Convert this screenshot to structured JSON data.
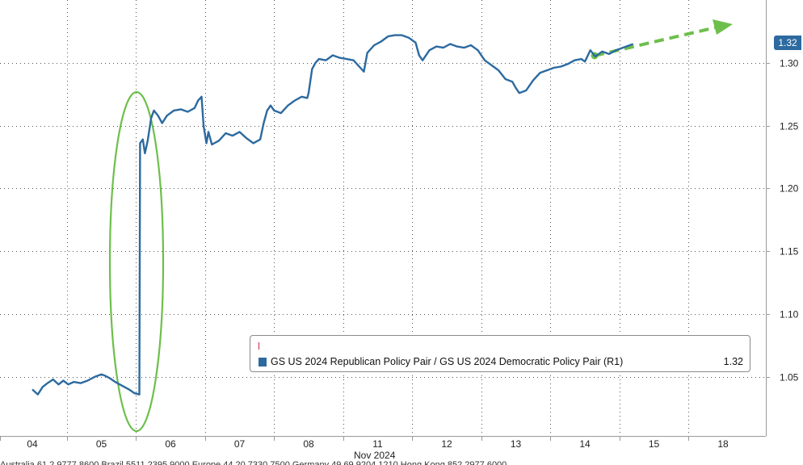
{
  "chart_data": {
    "type": "line",
    "title": "",
    "xlabel": "",
    "ylabel": "",
    "x_unit_label": "Nov 2024",
    "categories": [
      "04",
      "05",
      "06",
      "07",
      "08",
      "11",
      "12",
      "13",
      "14",
      "15",
      "18"
    ],
    "y_axis": {
      "side": "right",
      "ticks": [
        1.05,
        1.1,
        1.15,
        1.2,
        1.25,
        1.3
      ],
      "tick_labels": [
        "1.05",
        "1.10",
        "1.15",
        "1.20",
        "1.25",
        "1.30"
      ],
      "ylim": [
        1.003,
        1.35
      ]
    },
    "grid": true,
    "grid_style": "dotted",
    "series": [
      {
        "name": "GS US 2024 Republican Policy Pair / GS US 2024 Democratic Policy Pair (R1)",
        "color": "#2c6aa0",
        "last_value": "1.32",
        "points": [
          [
            0.0,
            1.04
          ],
          [
            0.08,
            1.036
          ],
          [
            0.15,
            1.042
          ],
          [
            0.22,
            1.045
          ],
          [
            0.3,
            1.048
          ],
          [
            0.38,
            1.044
          ],
          [
            0.45,
            1.047
          ],
          [
            0.52,
            1.044
          ],
          [
            0.6,
            1.046
          ],
          [
            0.7,
            1.045
          ],
          [
            0.8,
            1.047
          ],
          [
            0.9,
            1.05
          ],
          [
            1.0,
            1.052
          ],
          [
            1.05,
            1.051
          ],
          [
            1.12,
            1.049
          ],
          [
            1.2,
            1.046
          ],
          [
            1.3,
            1.043
          ],
          [
            1.4,
            1.04
          ],
          [
            1.48,
            1.037
          ],
          [
            1.55,
            1.036
          ],
          [
            1.56,
            1.236
          ],
          [
            1.6,
            1.239
          ],
          [
            1.63,
            1.228
          ],
          [
            1.67,
            1.238
          ],
          [
            1.72,
            1.256
          ],
          [
            1.76,
            1.262
          ],
          [
            1.82,
            1.258
          ],
          [
            1.88,
            1.252
          ],
          [
            1.95,
            1.258
          ],
          [
            2.05,
            1.262
          ],
          [
            2.15,
            1.263
          ],
          [
            2.25,
            1.261
          ],
          [
            2.35,
            1.264
          ],
          [
            2.4,
            1.27
          ],
          [
            2.45,
            1.273
          ],
          [
            2.48,
            1.25
          ],
          [
            2.52,
            1.236
          ],
          [
            2.55,
            1.245
          ],
          [
            2.6,
            1.235
          ],
          [
            2.7,
            1.238
          ],
          [
            2.8,
            1.244
          ],
          [
            2.9,
            1.242
          ],
          [
            3.0,
            1.245
          ],
          [
            3.1,
            1.24
          ],
          [
            3.2,
            1.236
          ],
          [
            3.3,
            1.239
          ],
          [
            3.35,
            1.252
          ],
          [
            3.4,
            1.262
          ],
          [
            3.45,
            1.266
          ],
          [
            3.5,
            1.262
          ],
          [
            3.6,
            1.26
          ],
          [
            3.7,
            1.266
          ],
          [
            3.8,
            1.27
          ],
          [
            3.9,
            1.273
          ],
          [
            3.98,
            1.272
          ],
          [
            4.0,
            1.276
          ],
          [
            4.05,
            1.295
          ],
          [
            4.1,
            1.3
          ],
          [
            4.15,
            1.303
          ],
          [
            4.25,
            1.302
          ],
          [
            4.35,
            1.306
          ],
          [
            4.45,
            1.304
          ],
          [
            4.55,
            1.303
          ],
          [
            4.65,
            1.302
          ],
          [
            4.75,
            1.296
          ],
          [
            4.8,
            1.293
          ],
          [
            4.85,
            1.308
          ],
          [
            4.95,
            1.314
          ],
          [
            5.05,
            1.317
          ],
          [
            5.15,
            1.321
          ],
          [
            5.25,
            1.322
          ],
          [
            5.35,
            1.322
          ],
          [
            5.45,
            1.32
          ],
          [
            5.55,
            1.316
          ],
          [
            5.6,
            1.306
          ],
          [
            5.65,
            1.302
          ],
          [
            5.75,
            1.31
          ],
          [
            5.85,
            1.313
          ],
          [
            5.95,
            1.312
          ],
          [
            6.05,
            1.315
          ],
          [
            6.15,
            1.313
          ],
          [
            6.25,
            1.312
          ],
          [
            6.35,
            1.314
          ],
          [
            6.45,
            1.31
          ],
          [
            6.55,
            1.302
          ],
          [
            6.65,
            1.298
          ],
          [
            6.75,
            1.294
          ],
          [
            6.85,
            1.287
          ],
          [
            6.95,
            1.285
          ],
          [
            7.0,
            1.28
          ],
          [
            7.05,
            1.276
          ],
          [
            7.15,
            1.278
          ],
          [
            7.25,
            1.286
          ],
          [
            7.35,
            1.292
          ],
          [
            7.45,
            1.294
          ],
          [
            7.55,
            1.296
          ],
          [
            7.65,
            1.297
          ],
          [
            7.75,
            1.299
          ],
          [
            7.85,
            1.302
          ],
          [
            7.95,
            1.303
          ],
          [
            8.0,
            1.301
          ],
          [
            8.08,
            1.31
          ],
          [
            8.15,
            1.305
          ],
          [
            8.25,
            1.309
          ],
          [
            8.35,
            1.307
          ],
          [
            8.45,
            1.31
          ],
          [
            8.55,
            1.312
          ],
          [
            8.65,
            1.314
          ],
          [
            8.7,
            1.315
          ]
        ]
      }
    ],
    "annotations": [
      {
        "type": "ellipse",
        "color": "#6dbf4b",
        "description": "highlight of jump on 05"
      },
      {
        "type": "dashed-arrow",
        "color": "#6dbf4b",
        "description": "upward trend arrow from 14 to 18"
      }
    ]
  },
  "legend": {
    "label": "GS US 2024 Republican Policy Pair / GS US 2024 Democratic Policy Pair (R1)",
    "value": "1.32",
    "placement": "bottom-right"
  },
  "footer": {
    "text": "Australia 61 2 9777 8600 Brazil 5511 2395 9000 Europe 44 20 7330 7500 Germany 49 69 9204 1210 Hong Kong 852 2977 6000"
  }
}
